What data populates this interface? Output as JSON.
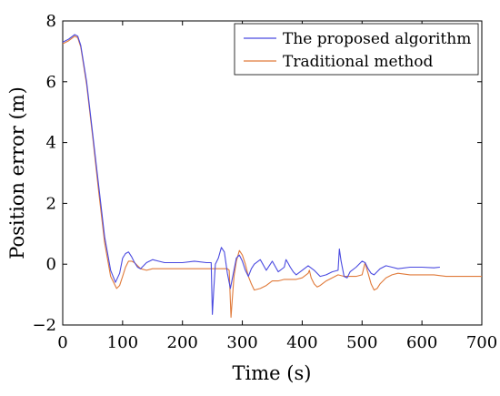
{
  "chart_data": {
    "type": "line",
    "title": "",
    "xlabel": "Time (s)",
    "ylabel": "Position error (m)",
    "xlim": [
      0,
      700
    ],
    "ylim": [
      -2,
      8
    ],
    "xticks": [
      0,
      100,
      200,
      300,
      400,
      500,
      600,
      700
    ],
    "yticks": [
      -2,
      0,
      2,
      4,
      6,
      8
    ],
    "grid": false,
    "legend": "top-right",
    "series": [
      {
        "name": "The proposed algorithm",
        "color": "#4a4ae0",
        "x": [
          0,
          10,
          20,
          25,
          30,
          40,
          50,
          60,
          70,
          80,
          88,
          95,
          100,
          105,
          110,
          115,
          120,
          125,
          130,
          140,
          150,
          160,
          170,
          180,
          200,
          220,
          240,
          248,
          250,
          252,
          255,
          260,
          265,
          270,
          275,
          280,
          285,
          290,
          295,
          300,
          305,
          310,
          315,
          320,
          330,
          340,
          350,
          360,
          370,
          373,
          376,
          380,
          385,
          390,
          400,
          410,
          420,
          430,
          440,
          450,
          460,
          462,
          465,
          470,
          475,
          480,
          490,
          500,
          505,
          510,
          515,
          520,
          530,
          540,
          550,
          560,
          580,
          600,
          620,
          630
        ],
        "y": [
          7.3,
          7.4,
          7.55,
          7.5,
          7.2,
          6.0,
          4.3,
          2.6,
          0.9,
          -0.2,
          -0.6,
          -0.3,
          0.2,
          0.35,
          0.4,
          0.25,
          0.05,
          -0.1,
          -0.15,
          0.05,
          0.15,
          0.1,
          0.05,
          0.05,
          0.05,
          0.1,
          0.05,
          0.05,
          -1.65,
          -0.9,
          0.0,
          0.2,
          0.55,
          0.4,
          -0.3,
          -0.8,
          -0.3,
          0.2,
          0.3,
          0.1,
          -0.2,
          -0.4,
          -0.15,
          0.0,
          0.15,
          -0.2,
          0.1,
          -0.25,
          -0.1,
          0.15,
          0.05,
          -0.1,
          -0.25,
          -0.35,
          -0.2,
          -0.05,
          -0.2,
          -0.4,
          -0.35,
          -0.25,
          -0.2,
          0.5,
          0.1,
          -0.4,
          -0.45,
          -0.25,
          -0.1,
          0.1,
          0.05,
          -0.15,
          -0.3,
          -0.35,
          -0.15,
          -0.05,
          -0.1,
          -0.15,
          -0.1,
          -0.1,
          -0.12,
          -0.1
        ]
      },
      {
        "name": "Traditional method",
        "color": "#e07a3a",
        "x": [
          0,
          10,
          20,
          25,
          30,
          40,
          50,
          60,
          70,
          80,
          90,
          95,
          100,
          105,
          110,
          115,
          120,
          125,
          130,
          140,
          150,
          160,
          180,
          200,
          220,
          240,
          250,
          270,
          275,
          278,
          281,
          283,
          286,
          290,
          295,
          300,
          305,
          310,
          315,
          320,
          330,
          340,
          350,
          360,
          370,
          380,
          390,
          400,
          410,
          412,
          415,
          420,
          425,
          430,
          440,
          450,
          460,
          470,
          480,
          490,
          500,
          505,
          507,
          510,
          515,
          520,
          525,
          530,
          540,
          550,
          560,
          580,
          600,
          620,
          640,
          660,
          680,
          700
        ],
        "y": [
          7.25,
          7.35,
          7.5,
          7.45,
          7.15,
          5.9,
          4.2,
          2.4,
          0.7,
          -0.4,
          -0.8,
          -0.7,
          -0.4,
          -0.1,
          0.1,
          0.1,
          0.05,
          -0.05,
          -0.15,
          -0.2,
          -0.15,
          -0.15,
          -0.15,
          -0.15,
          -0.15,
          -0.15,
          -0.15,
          -0.15,
          -0.15,
          -0.2,
          -1.75,
          -1.2,
          -0.4,
          0.1,
          0.45,
          0.3,
          0.0,
          -0.4,
          -0.65,
          -0.85,
          -0.8,
          -0.7,
          -0.55,
          -0.55,
          -0.5,
          -0.5,
          -0.5,
          -0.45,
          -0.3,
          -0.2,
          -0.45,
          -0.65,
          -0.75,
          -0.7,
          -0.55,
          -0.45,
          -0.35,
          -0.4,
          -0.4,
          -0.4,
          -0.35,
          0.05,
          -0.1,
          -0.3,
          -0.65,
          -0.85,
          -0.8,
          -0.65,
          -0.45,
          -0.35,
          -0.3,
          -0.35,
          -0.35,
          -0.35,
          -0.4,
          -0.4,
          -0.4,
          -0.4
        ]
      }
    ]
  }
}
